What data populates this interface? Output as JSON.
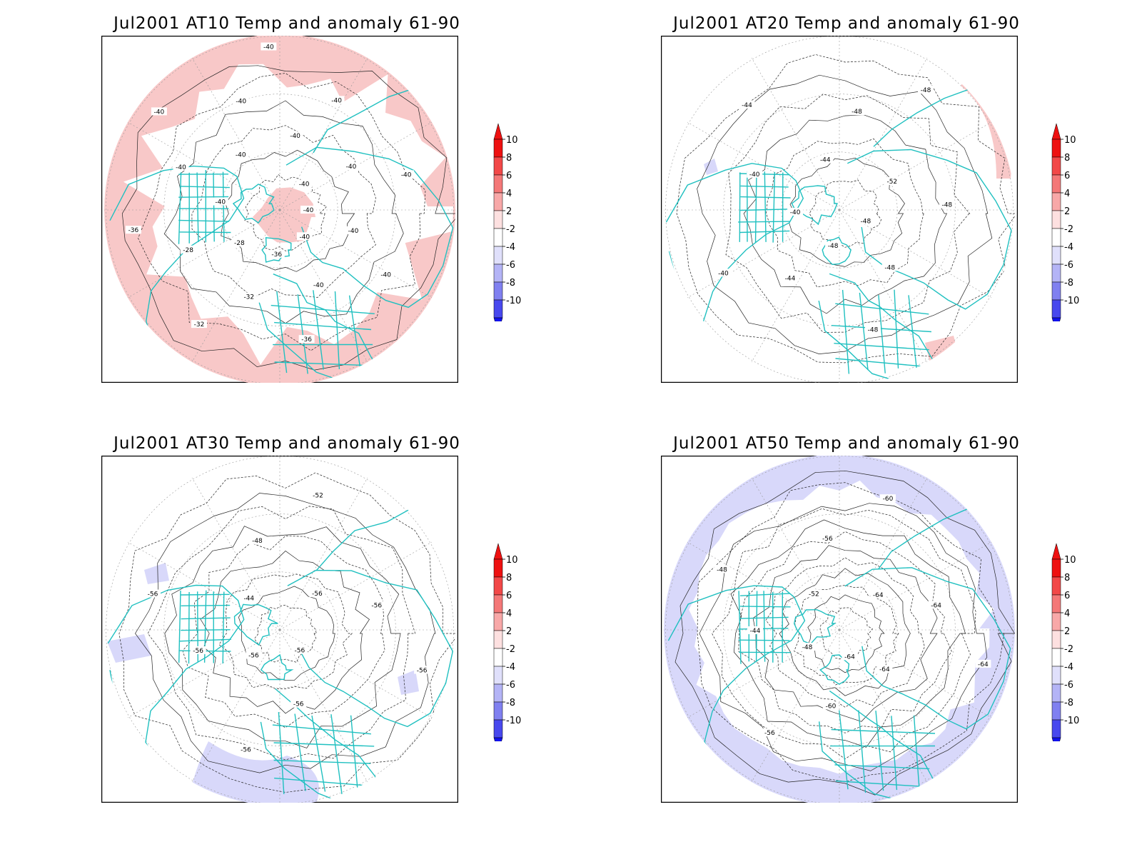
{
  "panels": [
    {
      "title": "Jul2001 AT10 Temp and anomaly 61-90",
      "anomaly_color": "#f8c8c8",
      "anomaly_sign": "positive",
      "contour_labels": [
        "-40",
        "-40",
        "-40",
        "-40",
        "-40",
        "-36",
        "-36",
        "-32",
        "-32",
        "-28",
        "-28",
        "-36",
        "-40",
        "-40",
        "-40",
        "-40",
        "-40",
        "-40",
        "-40",
        "-40",
        "-40",
        "-40",
        "-40"
      ]
    },
    {
      "title": "Jul2001 AT20 Temp and anomaly 61-90",
      "anomaly_color": "#f8c8c8",
      "anomaly_sign": "positive",
      "contour_labels": [
        "-48",
        "-48",
        "-48",
        "-48",
        "-44",
        "-40",
        "-40",
        "-40",
        "-44",
        "-44",
        "-48",
        "-48",
        "-52",
        "-48"
      ]
    },
    {
      "title": "Jul2001 AT30 Temp and anomaly 61-90",
      "anomaly_color": "#d8d8fa",
      "anomaly_sign": "negative",
      "contour_labels": [
        "-56",
        "-56",
        "-56",
        "-56",
        "-56",
        "-56",
        "-44",
        "-48",
        "-52",
        "-56",
        "-56",
        "-56"
      ]
    },
    {
      "title": "Jul2001 AT50 Temp and anomaly 61-90",
      "anomaly_color": "#d8d8fa",
      "anomaly_sign": "negative",
      "contour_labels": [
        "-64",
        "-60",
        "-56",
        "-48",
        "-44",
        "-48",
        "-52",
        "-56",
        "-60",
        "-64",
        "-64",
        "-64",
        "-64"
      ]
    }
  ],
  "colorbar": {
    "levels": [
      {
        "label": "10",
        "color": "#ee1111"
      },
      {
        "label": "8",
        "color": "#f24848"
      },
      {
        "label": "6",
        "color": "#f47878"
      },
      {
        "label": "4",
        "color": "#f8a8a8"
      },
      {
        "label": "2",
        "color": "#fde0e0"
      },
      {
        "label": "-2",
        "color": "#ffffff"
      },
      {
        "label": "-4",
        "color": "#e0e0fb"
      },
      {
        "label": "-6",
        "color": "#b4b4f6"
      },
      {
        "label": "-8",
        "color": "#8080f0"
      },
      {
        "label": "-10",
        "color": "#4848ee"
      }
    ],
    "top_arrow_color": "#ee1111",
    "bottom_arrow_color": "#1111ee"
  },
  "map_style": {
    "land_color": "#20c0c0",
    "contour_color": "#222222",
    "grid_color": "#999999"
  }
}
